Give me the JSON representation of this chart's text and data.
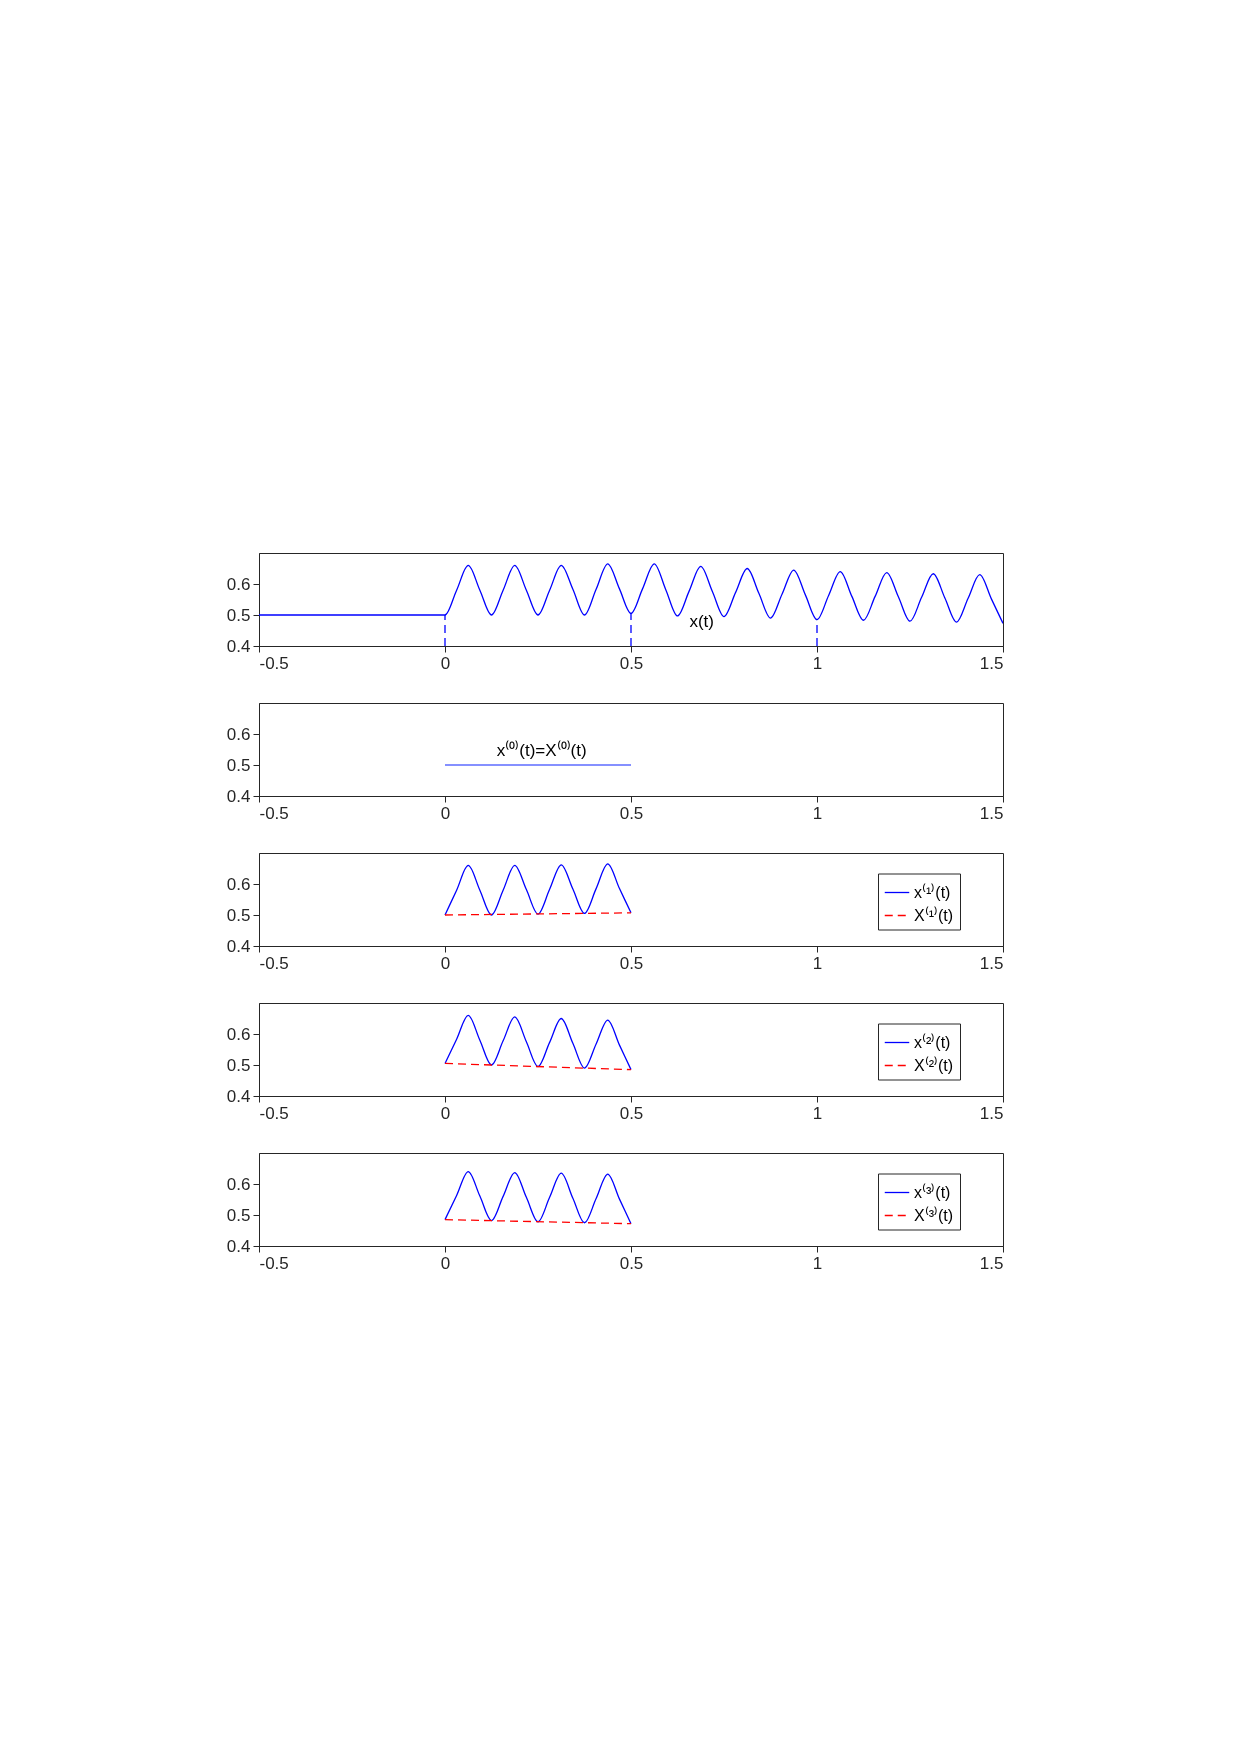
{
  "chart_data": [
    {
      "type": "line",
      "xlim": [
        -0.5,
        1.5
      ],
      "xticks": [
        -0.5,
        0,
        0.5,
        1,
        1.5
      ],
      "ylim": [
        0.4,
        0.7
      ],
      "yticks": [
        0.4,
        0.5,
        0.6
      ],
      "grid": false,
      "legend": false,
      "annotations": [
        "x(t)"
      ],
      "series": [
        {
          "color": "#0000ff",
          "line_style": "solid",
          "x": [
            -0.5,
            0,
            0.03125,
            0.0625,
            0.09375,
            0.125,
            0.15625,
            0.1875,
            0.21875,
            0.25,
            0.28125,
            0.3125,
            0.34375,
            0.375,
            0.40625,
            0.4375,
            0.46875,
            0.5,
            0.53125,
            0.5625,
            0.59375,
            0.625,
            0.65625,
            0.6875,
            0.71875,
            0.75,
            0.78125,
            0.8125,
            0.84375,
            0.875,
            0.90625,
            0.9375,
            0.96875,
            1,
            1.03125,
            1.0625,
            1.09375,
            1.125,
            1.15625,
            1.1875,
            1.21875,
            1.25,
            1.28125,
            1.3125,
            1.34375,
            1.375,
            1.40625,
            1.4375,
            1.46875,
            1.5
          ],
          "values": [
            0.5,
            0.5,
            0.58,
            0.66,
            0.58,
            0.5,
            0.58,
            0.66,
            0.58,
            0.5,
            0.58,
            0.66,
            0.583,
            0.5,
            0.583,
            0.665,
            0.585,
            0.505,
            0.585,
            0.665,
            0.581,
            0.497,
            0.577,
            0.657,
            0.576,
            0.495,
            0.573,
            0.65,
            0.57,
            0.49,
            0.568,
            0.645,
            0.565,
            0.485,
            0.563,
            0.64,
            0.56,
            0.483,
            0.56,
            0.637,
            0.559,
            0.48,
            0.557,
            0.633,
            0.555,
            0.477,
            0.554,
            0.63,
            0.552,
            0.473
          ]
        },
        {
          "color": "#0000ff",
          "line_style": "dashed",
          "x": [
            0,
            0
          ],
          "values": [
            0.4,
            0.5
          ]
        },
        {
          "color": "#0000ff",
          "line_style": "dashed",
          "x": [
            0.5,
            0.5
          ],
          "values": [
            0.4,
            0.505
          ]
        },
        {
          "color": "#0000ff",
          "line_style": "dashed",
          "x": [
            1,
            1
          ],
          "values": [
            0.4,
            0.485
          ]
        }
      ]
    },
    {
      "type": "line",
      "xlim": [
        -0.5,
        1.5
      ],
      "xticks": [
        -0.5,
        0,
        0.5,
        1,
        1.5
      ],
      "ylim": [
        0.4,
        0.7
      ],
      "yticks": [
        0.4,
        0.5,
        0.6
      ],
      "grid": false,
      "legend": false,
      "annotations": [
        "x⁽⁰⁾(t)=X⁽⁰⁾(t)"
      ],
      "series": [
        {
          "color": "#5c6bff",
          "line_style": "solid",
          "x": [
            0,
            0.5
          ],
          "values": [
            0.5,
            0.5
          ]
        }
      ]
    },
    {
      "type": "line",
      "xlim": [
        -0.5,
        1.5
      ],
      "xticks": [
        -0.5,
        0,
        0.5,
        1,
        1.5
      ],
      "ylim": [
        0.4,
        0.7
      ],
      "yticks": [
        0.4,
        0.5,
        0.6
      ],
      "grid": false,
      "legend": "right",
      "series": [
        {
          "name": "x⁽¹⁾(t)",
          "color": "#0000ff",
          "line_style": "solid",
          "x": [
            0,
            0.03125,
            0.0625,
            0.09375,
            0.125,
            0.15625,
            0.1875,
            0.21875,
            0.25,
            0.28125,
            0.3125,
            0.34375,
            0.375,
            0.40625,
            0.4375,
            0.46875,
            0.5
          ],
          "values": [
            0.5,
            0.58,
            0.66,
            0.58,
            0.5,
            0.58,
            0.66,
            0.582,
            0.503,
            0.583,
            0.662,
            0.584,
            0.505,
            0.585,
            0.665,
            0.586,
            0.507
          ]
        },
        {
          "name": "X⁽¹⁾(t)",
          "color": "#ff0000",
          "line_style": "dashed",
          "x": [
            0,
            0.5
          ],
          "values": [
            0.5,
            0.507
          ]
        }
      ]
    },
    {
      "type": "line",
      "xlim": [
        -0.5,
        1.5
      ],
      "xticks": [
        -0.5,
        0,
        0.5,
        1,
        1.5
      ],
      "ylim": [
        0.4,
        0.7
      ],
      "yticks": [
        0.4,
        0.5,
        0.6
      ],
      "grid": false,
      "legend": "right",
      "series": [
        {
          "name": "x⁽²⁾(t)",
          "color": "#0000ff",
          "line_style": "solid",
          "x": [
            0,
            0.03125,
            0.0625,
            0.09375,
            0.125,
            0.15625,
            0.1875,
            0.21875,
            0.25,
            0.28125,
            0.3125,
            0.34375,
            0.375,
            0.40625,
            0.4375,
            0.46875,
            0.5
          ],
          "values": [
            0.505,
            0.583,
            0.66,
            0.58,
            0.5,
            0.578,
            0.655,
            0.575,
            0.495,
            0.573,
            0.65,
            0.57,
            0.49,
            0.568,
            0.645,
            0.565,
            0.485
          ]
        },
        {
          "name": "X⁽²⁾(t)",
          "color": "#ff0000",
          "line_style": "dashed",
          "x": [
            0,
            0.5
          ],
          "values": [
            0.505,
            0.485
          ]
        }
      ]
    },
    {
      "type": "line",
      "xlim": [
        -0.5,
        1.5
      ],
      "xticks": [
        -0.5,
        0,
        0.5,
        1,
        1.5
      ],
      "ylim": [
        0.4,
        0.7
      ],
      "yticks": [
        0.4,
        0.5,
        0.6
      ],
      "grid": false,
      "legend": "right",
      "series": [
        {
          "name": "x⁽³⁾(t)",
          "color": "#0000ff",
          "line_style": "solid",
          "x": [
            0,
            0.03125,
            0.0625,
            0.09375,
            0.125,
            0.15625,
            0.1875,
            0.21875,
            0.25,
            0.28125,
            0.3125,
            0.34375,
            0.375,
            0.40625,
            0.4375,
            0.46875,
            0.5
          ],
          "values": [
            0.485,
            0.563,
            0.64,
            0.561,
            0.482,
            0.56,
            0.637,
            0.557,
            0.478,
            0.557,
            0.635,
            0.554,
            0.475,
            0.553,
            0.632,
            0.552,
            0.472
          ]
        },
        {
          "name": "X⁽³⁾(t)",
          "color": "#ff0000",
          "line_style": "dashed",
          "x": [
            0,
            0.5
          ],
          "values": [
            0.485,
            0.472
          ]
        }
      ]
    }
  ]
}
